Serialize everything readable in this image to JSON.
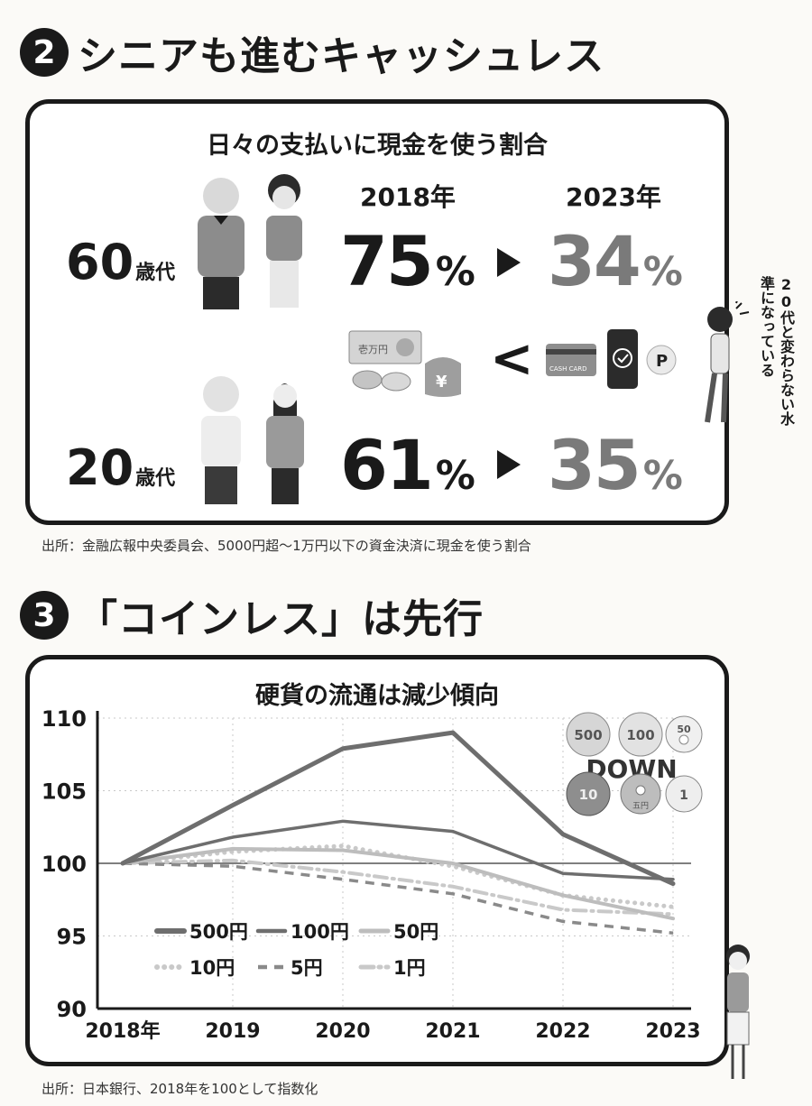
{
  "section2": {
    "number": "2",
    "title": "シニアも進むキャッシュレス",
    "panel_title": "日々の支払いに現金を使う割合",
    "year_a": "2018年",
    "year_b": "2023年",
    "rows": [
      {
        "age": "60",
        "age_unit": "歳代",
        "v2018": "75",
        "v2023": "34",
        "unit": "%"
      },
      {
        "age": "20",
        "age_unit": "歳代",
        "v2018": "61",
        "v2023": "35",
        "unit": "%"
      }
    ],
    "compare_symbol": "<",
    "card_label": "CASH CARD",
    "bill_label": "壱万円",
    "yen_symbol": "¥",
    "point_label": "P",
    "side_note": "20代と変わらない水準になっている",
    "source": "出所：金融広報中央委員会、5000円超～1万円以下の資金決済に現金を使う割合"
  },
  "section3": {
    "number": "3",
    "title": "「コインレス」は先行",
    "source": "出所：日本銀行、2018年を100として指数化",
    "badge_text": "DOWN",
    "coins": [
      "500",
      "100",
      "50",
      "10",
      "五円",
      "1"
    ]
  },
  "colors": {
    "ink": "#1a1a1a",
    "gray_strong": "#6e6e6e",
    "gray_mid": "#7a7a7a",
    "gray_light": "#bdbdbd",
    "gray_pale": "#c9c9c9"
  },
  "chart_data": {
    "type": "line",
    "title": "硬貨の流通は減少傾向",
    "x": [
      "2018年",
      "2019",
      "2020",
      "2021",
      "2022",
      "2023"
    ],
    "ylim": [
      90,
      110
    ],
    "yticks": [
      90,
      95,
      100,
      105,
      110
    ],
    "grid": true,
    "reference_line": 100,
    "legend_position": "bottom-left",
    "series": [
      {
        "name": "500円",
        "values": [
          100,
          104.0,
          107.9,
          109.0,
          102.0,
          98.6
        ],
        "style": "solid-thick",
        "color": "#6e6e6e"
      },
      {
        "name": "100円",
        "values": [
          100,
          101.8,
          102.9,
          102.2,
          99.3,
          98.9
        ],
        "style": "solid",
        "color": "#6e6e6e"
      },
      {
        "name": "50円",
        "values": [
          100,
          101.0,
          100.9,
          100.0,
          97.8,
          96.2
        ],
        "style": "solid-light",
        "color": "#bdbdbd"
      },
      {
        "name": "10円",
        "values": [
          100,
          100.8,
          101.2,
          99.8,
          97.8,
          97.0
        ],
        "style": "dotted",
        "color": "#c9c9c9"
      },
      {
        "name": "5円",
        "values": [
          100,
          99.8,
          98.9,
          97.9,
          96.0,
          95.2
        ],
        "style": "dashed",
        "color": "#8a8a8a"
      },
      {
        "name": "1円",
        "values": [
          100,
          100.2,
          99.4,
          98.4,
          96.8,
          96.5
        ],
        "style": "dash-dot",
        "color": "#c9c9c9"
      }
    ]
  }
}
